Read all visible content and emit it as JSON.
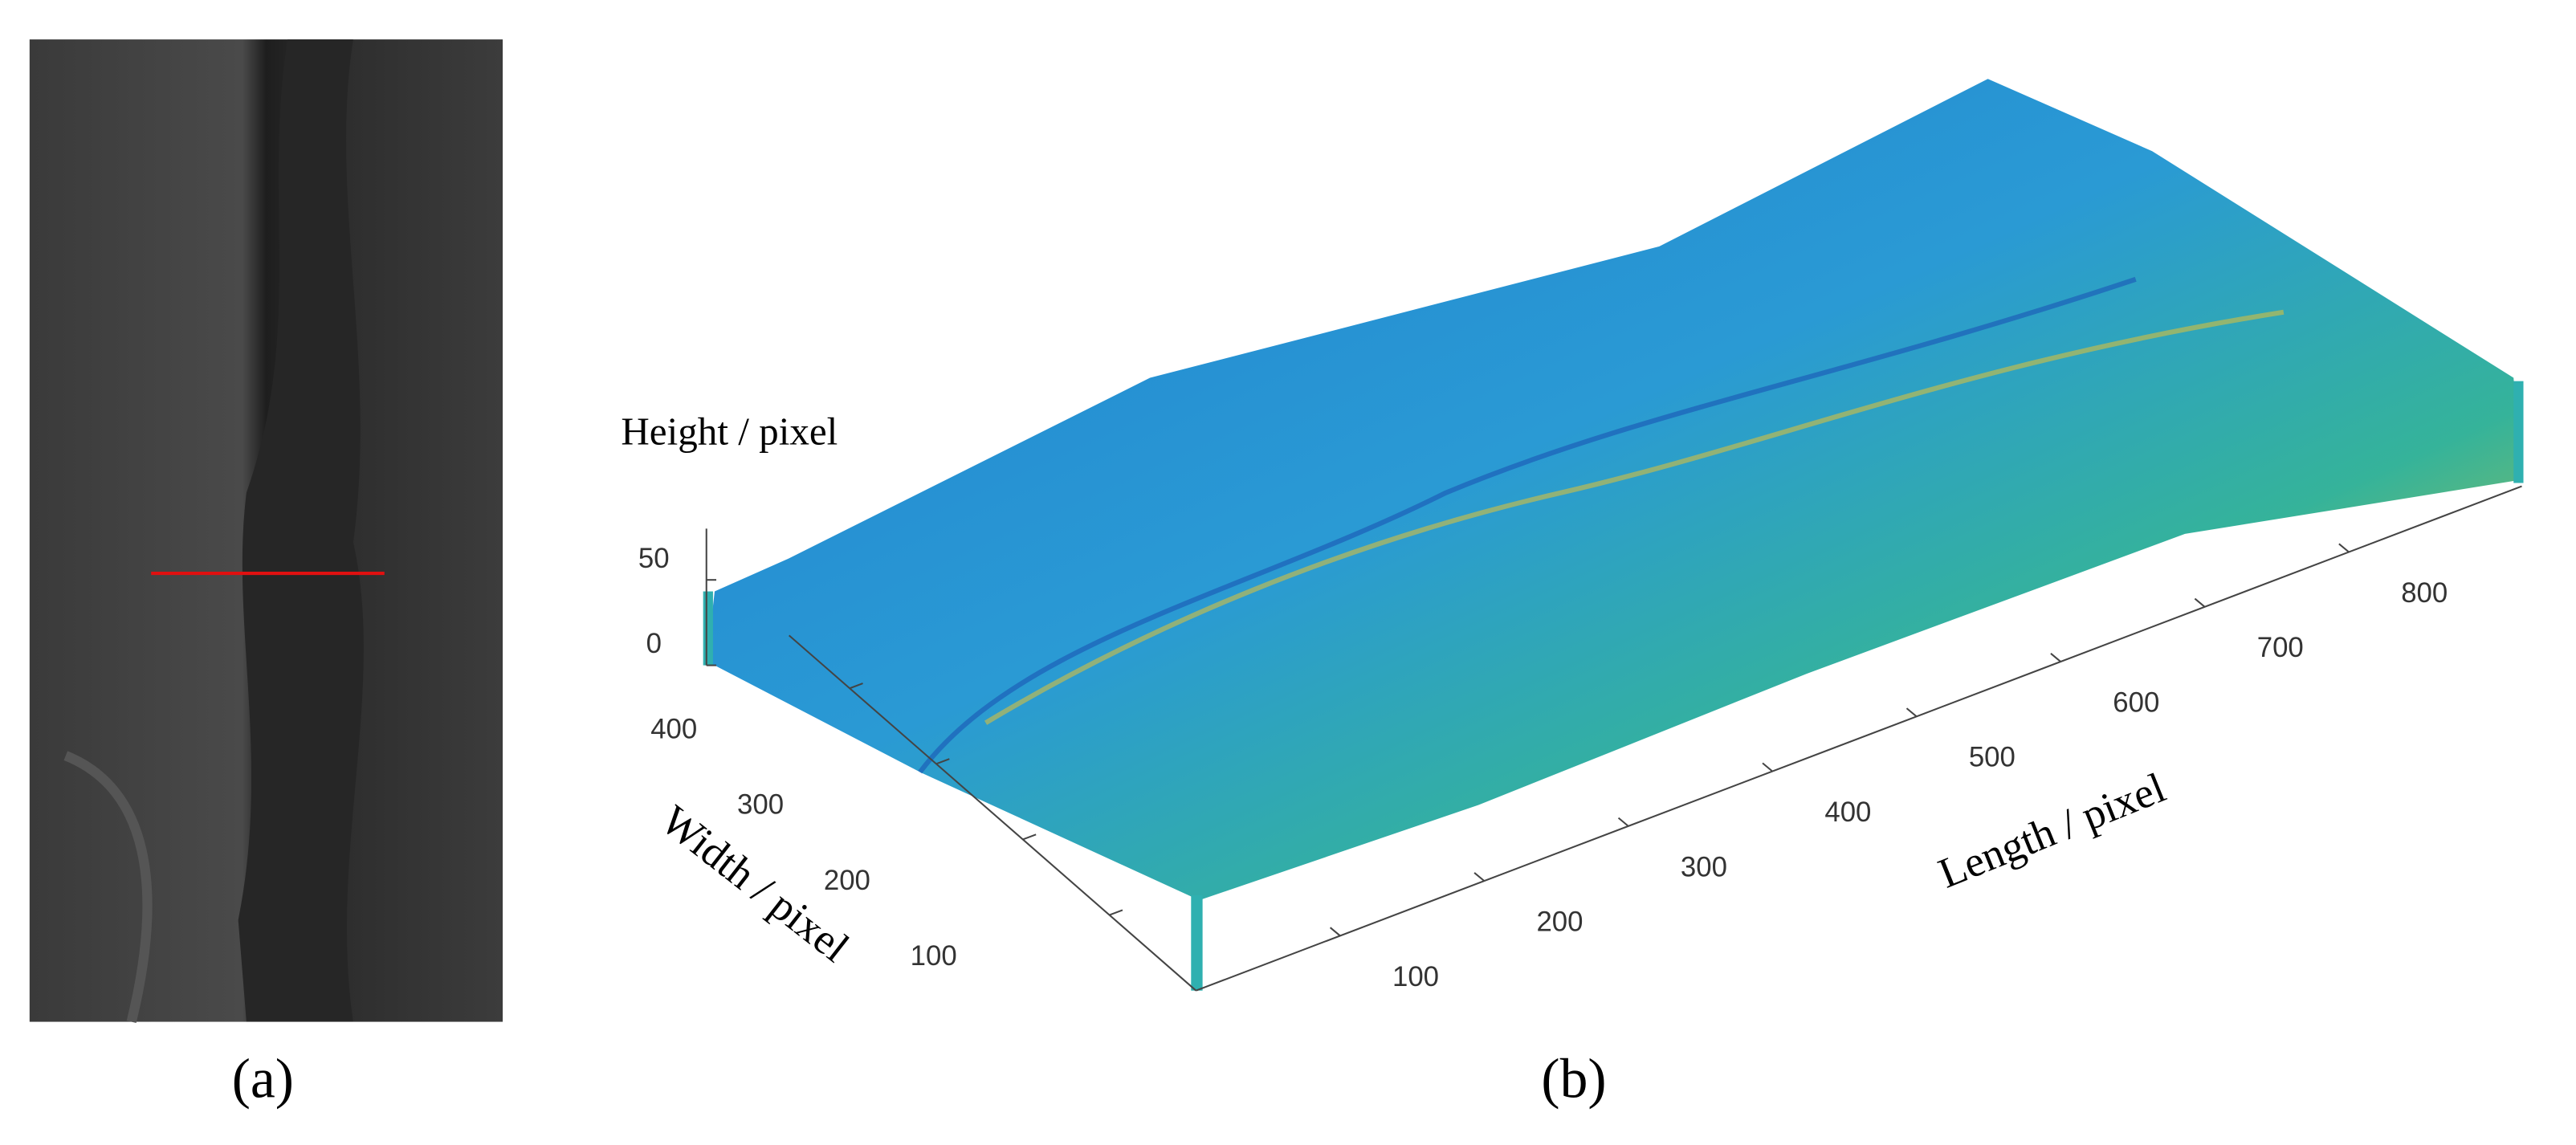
{
  "panels": [
    {
      "label": "(a)"
    },
    {
      "label": "(b)"
    }
  ],
  "chart_data": {
    "type": "surface",
    "xlabel": "Length / pixel",
    "ylabel": "Width / pixel",
    "zlabel": "Height / pixel",
    "xlim": [
      0,
      920
    ],
    "xticks": [
      100,
      200,
      300,
      400,
      500,
      600,
      700,
      800
    ],
    "ylim": [
      0,
      470
    ],
    "yticks": [
      100,
      200,
      300,
      400
    ],
    "zlim": [
      0,
      80
    ],
    "zticks": [
      0,
      50
    ]
  }
}
